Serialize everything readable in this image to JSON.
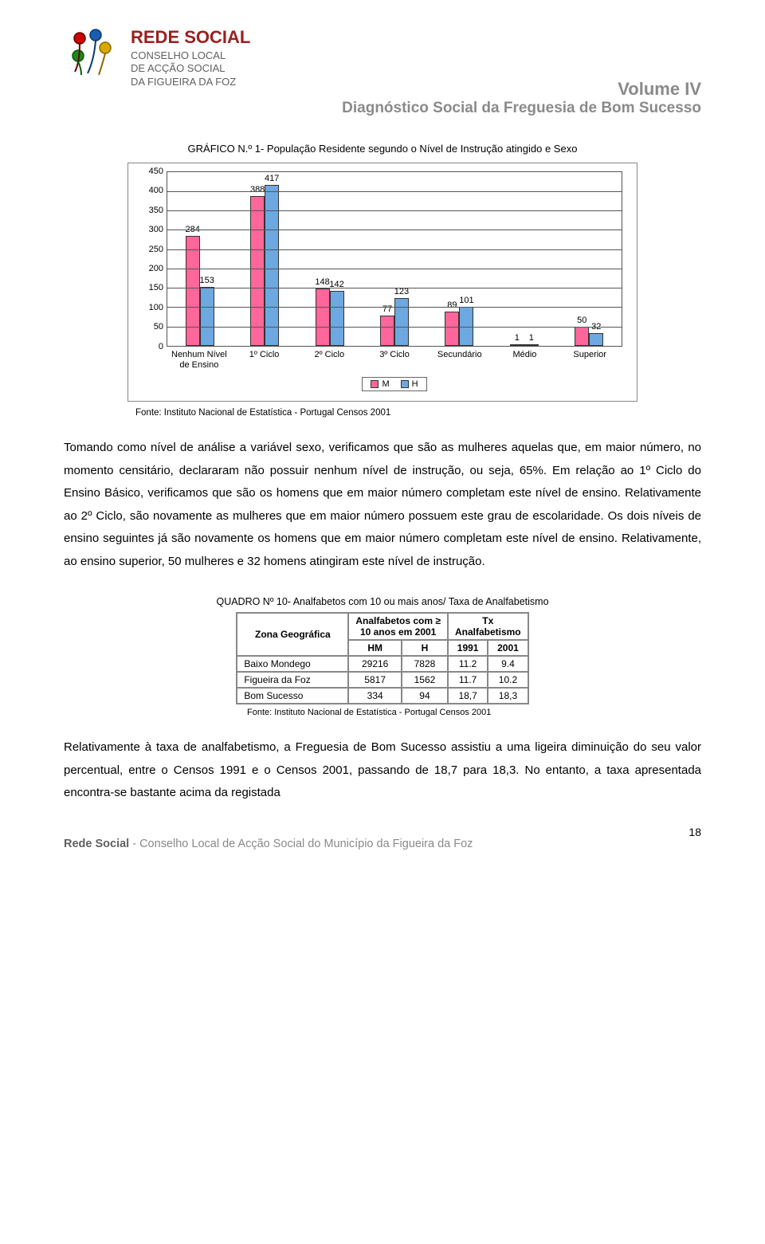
{
  "org": {
    "title": "REDE SOCIAL",
    "line1": "CONSELHO LOCAL",
    "line2": "DE ACÇÃO SOCIAL",
    "line3": "DA FIGUEIRA DA FOZ"
  },
  "doc": {
    "title1": "Volume IV",
    "title2": "Diagnóstico Social da Freguesia de Bom Sucesso"
  },
  "chart": {
    "title": "GRÁFICO N.º 1- População Residente segundo o Nível de Instrução atingido e Sexo",
    "type": "bar",
    "ylim": [
      0,
      450
    ],
    "ytick_step": 50,
    "yticks": [
      0,
      50,
      100,
      150,
      200,
      250,
      300,
      350,
      400,
      450
    ],
    "categories": [
      "Nenhum Nível de Ensino",
      "1º Ciclo",
      "2º Ciclo",
      "3º Ciclo",
      "Secundário",
      "Médio",
      "Superior"
    ],
    "series": [
      {
        "name": "M",
        "color": "#ff6699",
        "values": [
          284,
          388,
          148,
          77,
          89,
          1,
          50
        ]
      },
      {
        "name": "H",
        "color": "#6da8e0",
        "values": [
          153,
          417,
          142,
          123,
          101,
          1,
          32
        ]
      }
    ],
    "plot_border_color": "#555555",
    "grid_color": "#555555",
    "background_color": "#ffffff",
    "bar_border_color": "#333333",
    "label_fontsize": 11
  },
  "chart_source": "Fonte: Instituto Nacional de Estatística - Portugal Censos 2001",
  "paragraph1": "Tomando como nível de análise a variável sexo, verificamos que são as mulheres aquelas que, em maior número, no momento censitário, declararam não possuir nenhum nível de instrução, ou seja, 65%. Em relação ao 1º Ciclo do Ensino Básico, verificamos que são os homens que em maior número completam este nível de ensino. Relativamente ao 2º Ciclo, são novamente as mulheres que em maior número possuem este grau de escolaridade. Os dois níveis de ensino seguintes já são novamente os homens que em maior número completam este nível de ensino. Relativamente, ao ensino superior, 50 mulheres e 32 homens atingiram este nível de instrução.",
  "table": {
    "caption": "QUADRO Nº 10- Analfabetos com 10 ou mais anos/ Taxa de Analfabetismo",
    "header": {
      "zone": "Zona Geográfica",
      "col2_line1": "Analfabetos com ≥",
      "col2_line2": "10 anos em 2001",
      "col3_line1": "Tx",
      "col3_line2": "Analfabetismo",
      "sub": [
        "HM",
        "H",
        "1991",
        "2001"
      ]
    },
    "rows": [
      {
        "zone": "Baixo Mondego",
        "hm": "29216",
        "h": "7828",
        "y1991": "11.2",
        "y2001": "9.4"
      },
      {
        "zone": "Figueira da Foz",
        "hm": "5817",
        "h": "1562",
        "y1991": "11.7",
        "y2001": "10.2"
      },
      {
        "zone": "Bom Sucesso",
        "hm": "334",
        "h": "94",
        "y1991": "18,7",
        "y2001": "18,3"
      }
    ],
    "source": "Fonte: Instituto Nacional de Estatística - Portugal Censos 2001"
  },
  "paragraph2": "Relativamente à taxa de analfabetismo, a Freguesia de Bom Sucesso assistiu a uma ligeira diminuição do seu valor percentual, entre o Censos 1991 e o Censos 2001, passando de 18,7 para 18,3. No entanto, a taxa apresentada encontra-se bastante acima da registada",
  "footer": {
    "bold": "Rede Social",
    "rest": " - Conselho Local de Acção Social do Município da Figueira da Foz"
  },
  "page_number": "18"
}
